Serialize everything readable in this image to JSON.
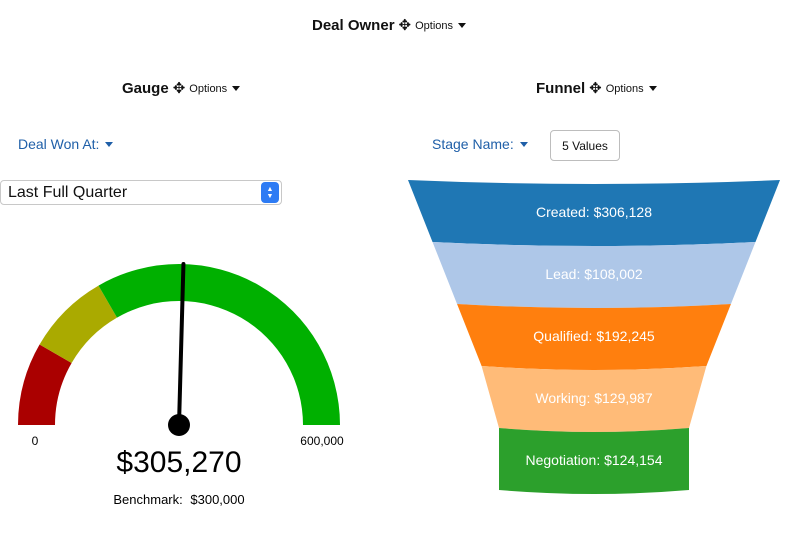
{
  "header": {
    "title": "Deal Owner",
    "options_label": "Options"
  },
  "gauge_panel": {
    "title": "Gauge",
    "options_label": "Options",
    "filter_label": "Deal Won At:",
    "select_value": "Last Full Quarter",
    "min_label": "0",
    "max_label": "600,000",
    "value_label": "$305,270",
    "benchmark_label": "Benchmark:",
    "benchmark_value": "$300,000",
    "colors": {
      "red": "#aa0000",
      "yellow": "#aaaa00",
      "green": "#00b000",
      "needle": "#000000"
    }
  },
  "funnel_panel": {
    "title": "Funnel",
    "options_label": "Options",
    "filter_label": "Stage Name:",
    "values_button_label": "5 Values"
  },
  "chart_data": [
    {
      "type": "gauge",
      "title": "Gauge",
      "value": 305270,
      "min": 0,
      "max": 600000,
      "benchmark": 300000,
      "bands": [
        {
          "from": 0,
          "to": 100000,
          "color": "#aa0000"
        },
        {
          "from": 100000,
          "to": 200000,
          "color": "#aaaa00"
        },
        {
          "from": 200000,
          "to": 600000,
          "color": "#00b000"
        }
      ]
    },
    {
      "type": "funnel",
      "title": "Funnel",
      "stages": [
        {
          "label": "Created: $306,128",
          "name": "Created",
          "value": 306128,
          "color": "#1f77b4"
        },
        {
          "label": "Lead: $108,002",
          "name": "Lead",
          "value": 108002,
          "color": "#aec7e8"
        },
        {
          "label": "Qualified: $192,245",
          "name": "Qualified",
          "value": 192245,
          "color": "#ff7f0e"
        },
        {
          "label": "Working: $129,987",
          "name": "Working",
          "value": 129987,
          "color": "#ffbb78"
        },
        {
          "label": "Negotiation: $124,154",
          "name": "Negotiation",
          "value": 124154,
          "color": "#2ca02c"
        }
      ]
    }
  ]
}
